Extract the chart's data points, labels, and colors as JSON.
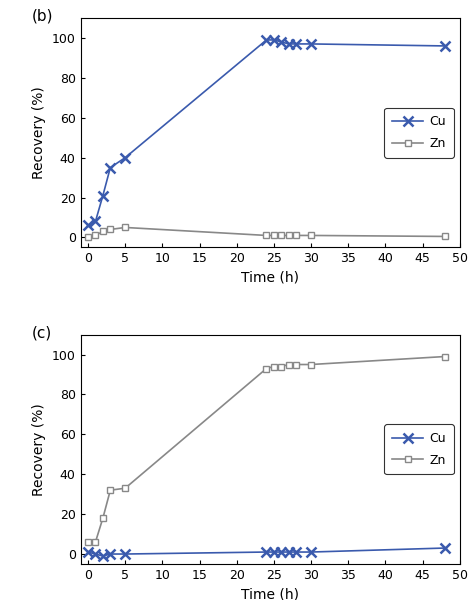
{
  "panel_b": {
    "label": "(b)",
    "Cu": {
      "x": [
        0,
        1,
        2,
        3,
        5,
        24,
        25,
        26,
        27,
        28,
        30,
        48
      ],
      "y": [
        6,
        8,
        21,
        35,
        40,
        99,
        99,
        98,
        97,
        97,
        97,
        96
      ],
      "color": "#3a5aad",
      "marker": "x",
      "linestyle": "-"
    },
    "Zn": {
      "x": [
        0,
        1,
        2,
        3,
        5,
        24,
        25,
        26,
        27,
        28,
        30,
        48
      ],
      "y": [
        0,
        1,
        3,
        4,
        5,
        1,
        1,
        1,
        1,
        1,
        1,
        0.5
      ],
      "color": "#888888",
      "marker": "s",
      "linestyle": "-"
    },
    "xlabel": "Time (h)",
    "ylabel": "Recovery (%)",
    "xlim": [
      -1,
      50
    ],
    "ylim": [
      -5,
      110
    ],
    "xticks": [
      0,
      5,
      10,
      15,
      20,
      25,
      30,
      35,
      40,
      45,
      50
    ],
    "yticks": [
      0,
      20,
      40,
      60,
      80,
      100
    ],
    "legend_loc": "center right"
  },
  "panel_c": {
    "label": "(c)",
    "Cu": {
      "x": [
        0,
        1,
        2,
        3,
        5,
        24,
        25,
        26,
        27,
        28,
        30,
        48
      ],
      "y": [
        1,
        0,
        -1,
        0,
        0,
        1,
        1,
        1,
        1,
        1,
        1,
        3
      ],
      "color": "#3a5aad",
      "marker": "x",
      "linestyle": "-"
    },
    "Zn": {
      "x": [
        0,
        1,
        2,
        3,
        5,
        24,
        25,
        26,
        27,
        28,
        30,
        48
      ],
      "y": [
        6,
        6,
        18,
        32,
        33,
        93,
        94,
        94,
        95,
        95,
        95,
        99
      ],
      "color": "#888888",
      "marker": "s",
      "linestyle": "-"
    },
    "xlabel": "Time (h)",
    "ylabel": "Recovery (%)",
    "xlim": [
      -1,
      50
    ],
    "ylim": [
      -5,
      110
    ],
    "xticks": [
      0,
      5,
      10,
      15,
      20,
      25,
      30,
      35,
      40,
      45,
      50
    ],
    "yticks": [
      0,
      20,
      40,
      60,
      80,
      100
    ],
    "legend_loc": "center right"
  },
  "legend_Cu_label": "Cu",
  "legend_Zn_label": "Zn",
  "bg_color": "#ffffff",
  "marker_size": 6,
  "linewidth": 1.2,
  "Cu_markersize": 7,
  "Zn_markersize": 5
}
